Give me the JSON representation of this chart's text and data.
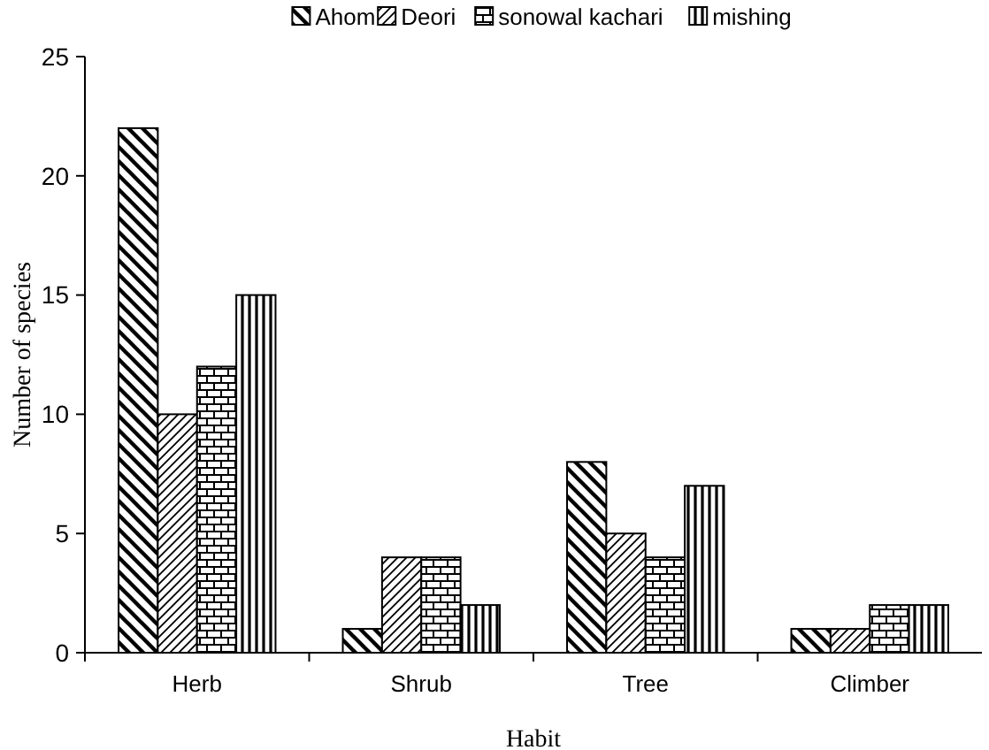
{
  "chart_data": {
    "type": "bar",
    "xlabel": "Habit",
    "ylabel": "Number of species",
    "categories": [
      "Herb",
      "Shrub",
      "Tree",
      "Climber"
    ],
    "series": [
      {
        "name": "Ahom",
        "color": "#000000",
        "values": [
          22,
          1,
          8,
          1
        ]
      },
      {
        "name": "Deori",
        "color": "#000000",
        "values": [
          10,
          4,
          5,
          1
        ]
      },
      {
        "name": "sonowal kachari",
        "color": "#000000",
        "values": [
          12,
          4,
          4,
          2
        ]
      },
      {
        "name": "mishing",
        "color": "#000000",
        "values": [
          15,
          2,
          7,
          2
        ]
      }
    ],
    "ylim": [
      0,
      25
    ],
    "yticks": [
      0,
      5,
      10,
      15,
      20,
      25
    ],
    "grid": false,
    "legend": "top"
  }
}
